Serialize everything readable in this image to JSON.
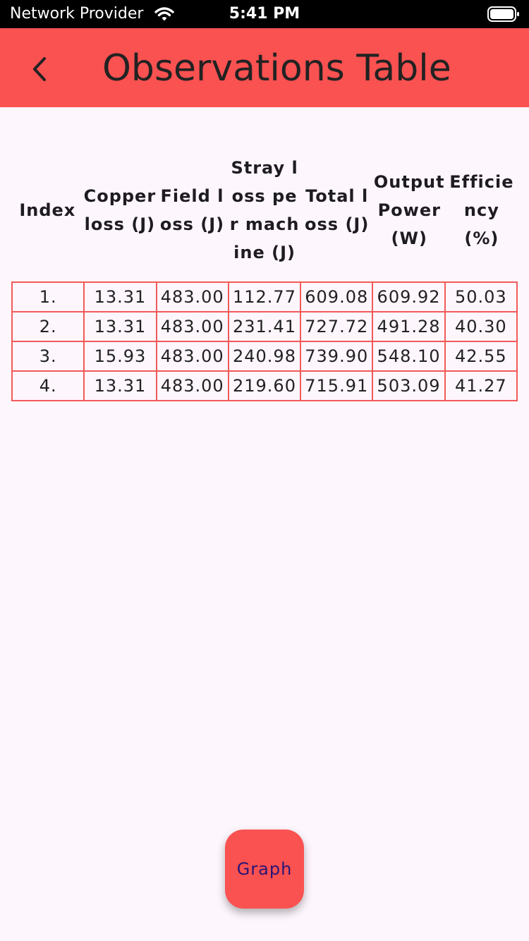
{
  "status": {
    "carrier": "Network Provider",
    "time": "5:41 PM"
  },
  "header": {
    "title": "Observations Table",
    "back_icon": "chevron-left-icon"
  },
  "table": {
    "columns": [
      "Index",
      "Copper loss (J)",
      "Field loss (J)",
      "Stray loss per machine (J)",
      "Total loss (J)",
      "Output Power (W)",
      "Efficiency (%)"
    ],
    "rows": [
      [
        "1.",
        "13.31",
        "483.00",
        "112.77",
        "609.08",
        "609.92",
        "50.03"
      ],
      [
        "2.",
        "13.31",
        "483.00",
        "231.41",
        "727.72",
        "491.28",
        "40.30"
      ],
      [
        "3.",
        "15.93",
        "483.00",
        "240.98",
        "739.90",
        "548.10",
        "42.55"
      ],
      [
        "4.",
        "13.31",
        "483.00",
        "219.60",
        "715.91",
        "503.09",
        "41.27"
      ]
    ]
  },
  "fab": {
    "label": "Graph"
  },
  "colors": {
    "accent": "#fa5151",
    "background": "#fdf6fc",
    "fab_text": "#2a1577"
  }
}
